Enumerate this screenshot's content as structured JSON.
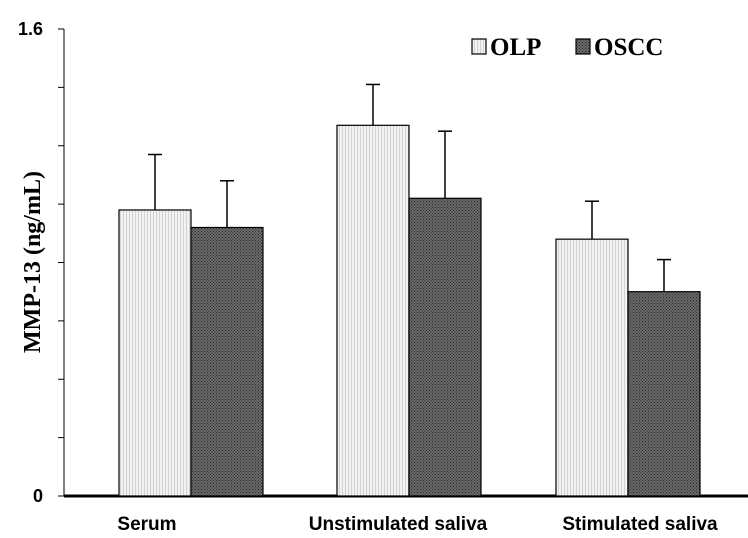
{
  "chart_data": {
    "type": "bar",
    "categories": [
      "Serum",
      "Unstimulated saliva",
      "Stimulated saliva"
    ],
    "series": [
      {
        "name": "OLP",
        "values": [
          0.98,
          1.27,
          0.88
        ],
        "error": [
          0.19,
          0.14,
          0.13
        ],
        "color": "#ebebeb"
      },
      {
        "name": "OSCC",
        "values": [
          0.92,
          1.02,
          0.7
        ],
        "error": [
          0.16,
          0.23,
          0.11
        ],
        "color": "#595959"
      }
    ],
    "ylabel": "MMP-13 (ng/mL)",
    "ylim": [
      0,
      1.6
    ],
    "ytick_labels": [
      "0",
      "1.6"
    ],
    "legend_position": "top-right",
    "grid": false
  }
}
